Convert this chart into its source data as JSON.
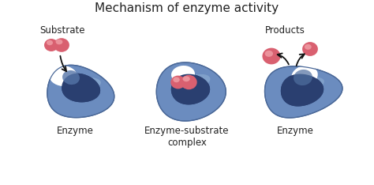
{
  "title": "Mechanism of enzyme activity",
  "title_fontsize": 11,
  "title_color": "#222222",
  "background_color": "#ffffff",
  "label_enzyme1": "Enzyme",
  "label_enzyme2": "Enzyme",
  "label_substrate": "Substrate",
  "label_products": "Products",
  "label_complex": "Enzyme-substrate\ncomplex",
  "label_fontsize": 8.5,
  "enzyme_outer": "#6080b0",
  "enzyme_mid": "#7090c0",
  "enzyme_light": "#90aad0",
  "enzyme_inner": "#2a3f70",
  "enzyme_edge": "#4060a0",
  "substrate_color": "#d96070",
  "substrate_highlight": "#f0a0a8"
}
